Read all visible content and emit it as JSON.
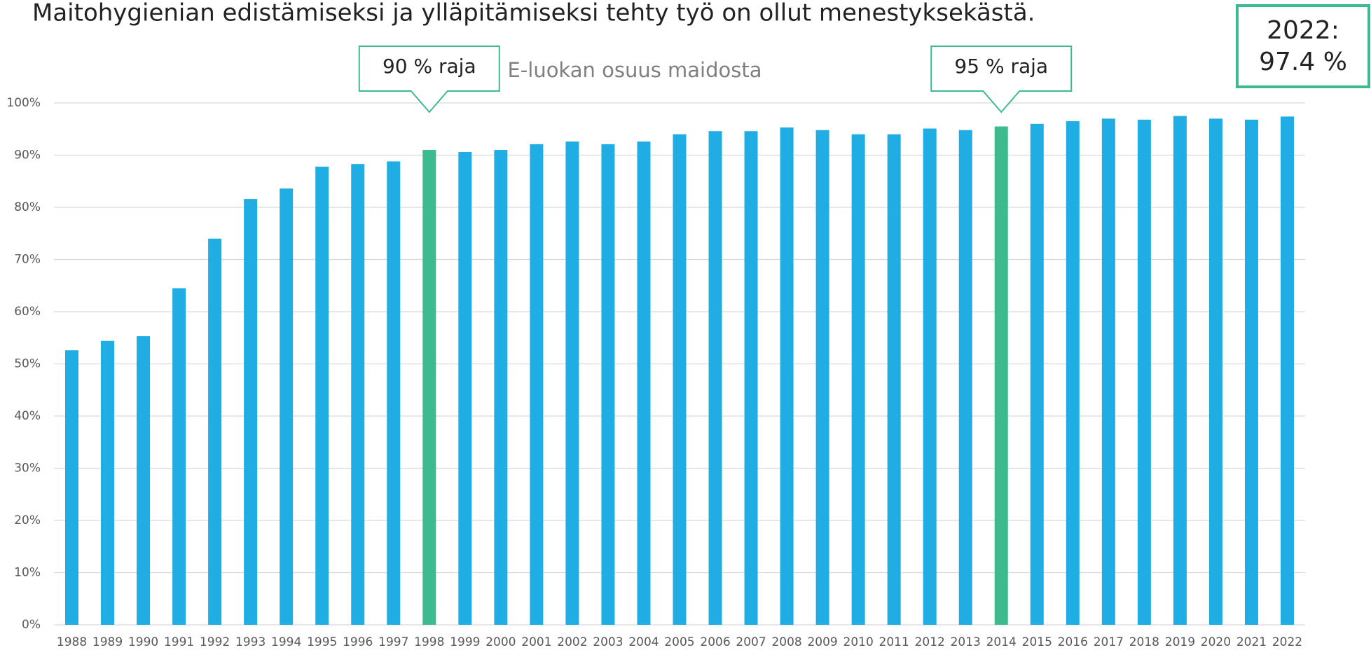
{
  "heading": "Maitohygienian edistämiseksi ja ylläpitämiseksi tehty työ on ollut menestyksekästä.",
  "chart_data": {
    "type": "bar",
    "title": "E-luokan osuus maidosta",
    "categories": [
      "1988",
      "1989",
      "1990",
      "1991",
      "1992",
      "1993",
      "1994",
      "1995",
      "1996",
      "1997",
      "1998",
      "1999",
      "2000",
      "2001",
      "2002",
      "2003",
      "2004",
      "2005",
      "2006",
      "2007",
      "2008",
      "2009",
      "2010",
      "2011",
      "2012",
      "2013",
      "2014",
      "2015",
      "2016",
      "2017",
      "2018",
      "2019",
      "2020",
      "2021",
      "2022"
    ],
    "values": [
      52.6,
      54.4,
      55.3,
      64.5,
      74.0,
      81.6,
      83.6,
      87.8,
      88.3,
      88.8,
      91.0,
      90.6,
      91.0,
      92.1,
      92.6,
      92.1,
      92.6,
      94.0,
      94.6,
      94.6,
      95.3,
      94.8,
      94.0,
      94.0,
      95.1,
      94.8,
      95.5,
      96.0,
      96.5,
      97.0,
      96.8,
      97.5,
      97.0,
      96.8,
      97.4
    ],
    "color": "#1fade4",
    "highlight_color": "#3dbb8e",
    "highlight": [
      "1998",
      "2014"
    ],
    "ylim": [
      0,
      100
    ],
    "yticks": [
      {
        "value": 0,
        "label": "0%"
      },
      {
        "value": 10,
        "label": "10%"
      },
      {
        "value": 20,
        "label": "20%"
      },
      {
        "value": 30,
        "label": "30%"
      },
      {
        "value": 40,
        "label": "40%"
      },
      {
        "value": 50,
        "label": "50%"
      },
      {
        "value": 60,
        "label": "60%"
      },
      {
        "value": 70,
        "label": "70%"
      },
      {
        "value": 80,
        "label": "80%"
      },
      {
        "value": 90,
        "label": "90%"
      },
      {
        "value": 100,
        "label": "100%"
      }
    ],
    "grid": true,
    "annotations": [
      {
        "text": "90 % raja",
        "category": "1998"
      },
      {
        "text": "95 % raja",
        "category": "2014"
      }
    ],
    "callout": [
      "2022:",
      "97.4 %"
    ]
  }
}
